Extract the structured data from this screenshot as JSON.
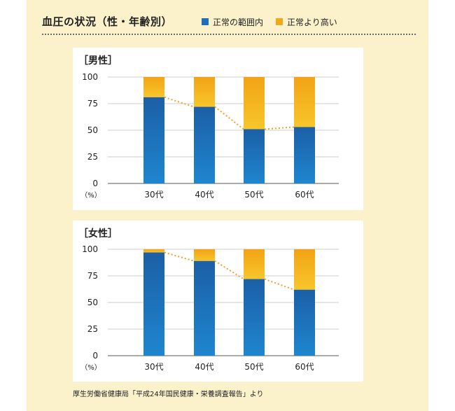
{
  "header": {
    "title": "血圧の状況（性・年齢別）",
    "legend": [
      {
        "label": "正常の範囲内",
        "color": "#1f6fba"
      },
      {
        "label": "正常より高い",
        "color": "#f2a81d"
      }
    ]
  },
  "chart_data": [
    {
      "type": "bar",
      "stacked": true,
      "title": "［男性］",
      "categories": [
        "30代",
        "40代",
        "50代",
        "60代"
      ],
      "series": [
        {
          "name": "正常の範囲内",
          "values": [
            81,
            72,
            51,
            53
          ],
          "color": "#1f6fba"
        },
        {
          "name": "正常より高い",
          "values": [
            19,
            28,
            49,
            47
          ],
          "color": "#f2a81d"
        }
      ],
      "y_ticks": [
        "0",
        "25",
        "50",
        "75",
        "100"
      ],
      "ylim": [
        0,
        100
      ],
      "unit": "（%）",
      "grid": true,
      "trend_line": "dotted, connecting tops of 正常の範囲内"
    },
    {
      "type": "bar",
      "stacked": true,
      "title": "［女性］",
      "categories": [
        "30代",
        "40代",
        "50代",
        "60代"
      ],
      "series": [
        {
          "name": "正常の範囲内",
          "values": [
            97,
            89,
            72,
            62
          ],
          "color": "#1f6fba"
        },
        {
          "name": "正常より高い",
          "values": [
            3,
            11,
            28,
            38
          ],
          "color": "#f2a81d"
        }
      ],
      "y_ticks": [
        "0",
        "25",
        "50",
        "75",
        "100"
      ],
      "ylim": [
        0,
        100
      ],
      "unit": "（%）",
      "grid": true,
      "trend_line": "dotted, connecting tops of 正常の範囲内"
    }
  ],
  "source": "厚生労働省健康局「平成24年国民健康・栄養調査報告」より"
}
